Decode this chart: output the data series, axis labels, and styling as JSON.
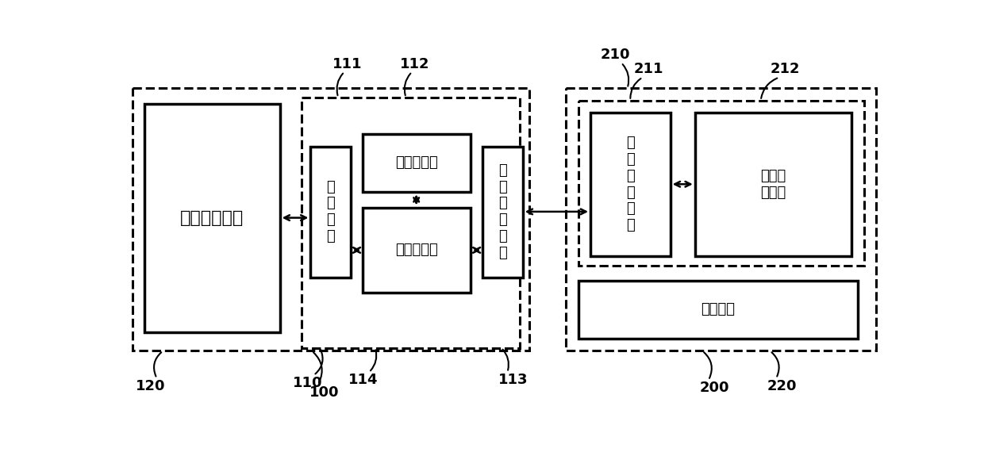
{
  "bg_color": "#ffffff",
  "line_color": "#000000",
  "labels": {
    "device_func": "设备功能单元",
    "comm_iface": "通\n信\n接\n口",
    "param_storage": "参数存储器",
    "data_proc": "数据处理器",
    "param_recv": "参\n数\n接\n收\n接\n口",
    "param_set": "参\n数\n设\n定\n接\n口",
    "param_store_unit": "参数存\n储单元",
    "mech_iface": "机械接口",
    "n100": "100",
    "n110": "110",
    "n111": "111",
    "n112": "112",
    "n113": "113",
    "n114": "114",
    "n120": "120",
    "n200": "200",
    "n210": "210",
    "n211": "211",
    "n212": "212",
    "n220": "220"
  },
  "font_size_main": 16,
  "font_size_label": 13,
  "font_size_small": 13,
  "font_size_num": 13
}
